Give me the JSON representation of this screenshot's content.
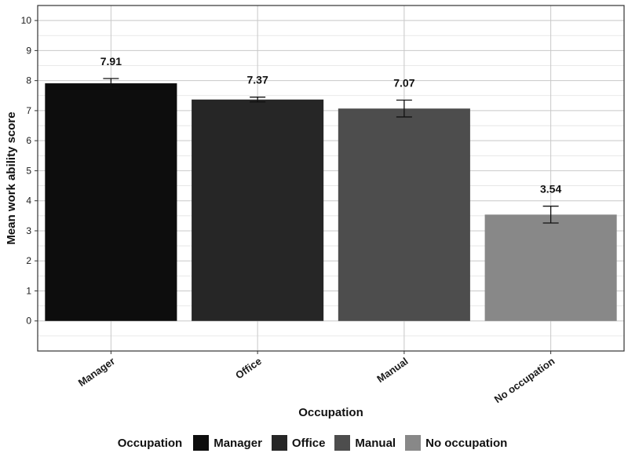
{
  "chart_data": {
    "type": "bar",
    "title": "",
    "xlabel": "Occupation",
    "ylabel": "Mean work ability score",
    "ylim": [
      -1,
      10.5
    ],
    "yticks": [
      0,
      1,
      2,
      3,
      4,
      5,
      6,
      7,
      8,
      9,
      10
    ],
    "categories": [
      "Manager",
      "Office",
      "Manual",
      "No occupation"
    ],
    "values": [
      7.91,
      7.37,
      7.07,
      3.54
    ],
    "value_labels": [
      "7.91",
      "7.37",
      "7.07",
      "3.54"
    ],
    "error_low": [
      7.75,
      7.29,
      6.79,
      3.26
    ],
    "error_high": [
      8.07,
      7.45,
      7.35,
      3.82
    ],
    "colors": [
      "#0d0d0d",
      "#262626",
      "#4d4d4d",
      "#888888"
    ],
    "grid": true,
    "legend": {
      "title": "Occupation",
      "position": "bottom",
      "entries": [
        "Manager",
        "Office",
        "Manual",
        "No occupation"
      ]
    }
  }
}
